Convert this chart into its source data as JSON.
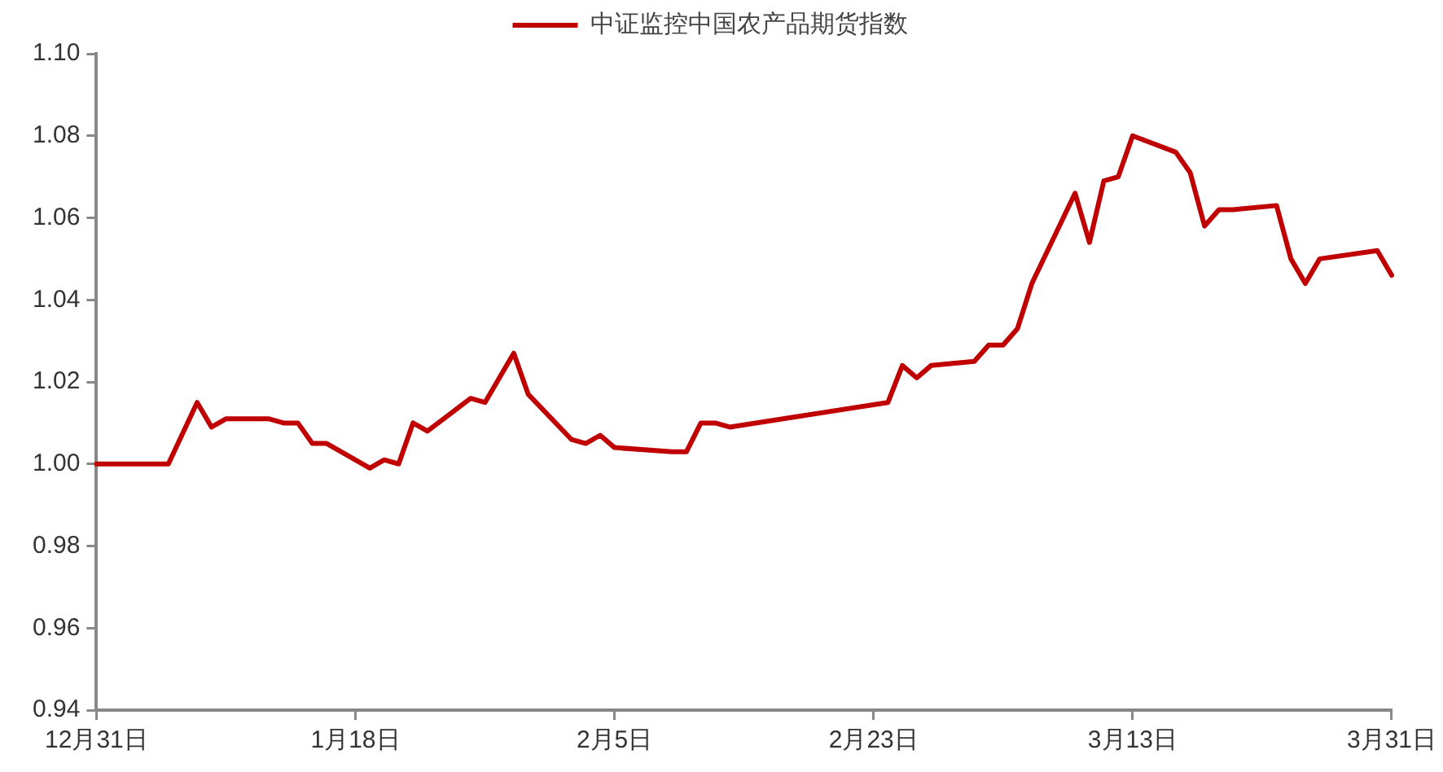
{
  "chart_data": {
    "type": "line",
    "categories": [
      "12月31日",
      null,
      null,
      null,
      null,
      null,
      null,
      null,
      null,
      null,
      null,
      null,
      null,
      null,
      null,
      null,
      null,
      null,
      "1月18日",
      null,
      null,
      null,
      null,
      null,
      null,
      null,
      null,
      null,
      null,
      null,
      null,
      null,
      null,
      null,
      null,
      null,
      "2月5日",
      null,
      null,
      null,
      null,
      null,
      null,
      null,
      null,
      null,
      null,
      null,
      null,
      null,
      null,
      null,
      null,
      null,
      "2月23日",
      null,
      null,
      null,
      null,
      null,
      null,
      null,
      null,
      null,
      null,
      null,
      null,
      null,
      null,
      null,
      null,
      null,
      "3月13日",
      null,
      null,
      null,
      null,
      null,
      null,
      null,
      null,
      null,
      null,
      null,
      null,
      null,
      null,
      null,
      null,
      null,
      "3月31日"
    ],
    "series": [
      {
        "name": "中证监控中国农产品期货指数",
        "color": "#c00000",
        "values": [
          1.0,
          null,
          null,
          null,
          null,
          1.0,
          null,
          1.015,
          1.009,
          1.011,
          null,
          null,
          1.011,
          1.01,
          1.01,
          1.005,
          1.005,
          null,
          null,
          0.999,
          1.001,
          1.0,
          1.01,
          1.008,
          null,
          null,
          1.016,
          1.015,
          null,
          1.027,
          1.017,
          null,
          null,
          1.006,
          1.005,
          1.007,
          1.004,
          null,
          null,
          null,
          1.003,
          1.003,
          1.01,
          1.01,
          1.009,
          null,
          null,
          null,
          null,
          null,
          null,
          null,
          null,
          null,
          null,
          1.015,
          1.024,
          1.021,
          1.024,
          null,
          null,
          1.025,
          1.029,
          1.029,
          1.033,
          1.044,
          null,
          null,
          1.066,
          1.054,
          1.069,
          1.07,
          1.08,
          null,
          null,
          1.076,
          1.071,
          1.058,
          1.062,
          1.062,
          null,
          null,
          1.063,
          1.05,
          1.044,
          1.05,
          null,
          null,
          null,
          1.052,
          1.046
        ]
      }
    ],
    "ylim": [
      0.94,
      1.1
    ],
    "yticks": [
      {
        "value": 0.94,
        "label": "0.94"
      },
      {
        "value": 0.96,
        "label": "0.96"
      },
      {
        "value": 0.98,
        "label": "0.98"
      },
      {
        "value": 1.0,
        "label": "1.00"
      },
      {
        "value": 1.02,
        "label": "1.02"
      },
      {
        "value": 1.04,
        "label": "1.04"
      },
      {
        "value": 1.06,
        "label": "1.06"
      },
      {
        "value": 1.08,
        "label": "1.08"
      },
      {
        "value": 1.1,
        "label": "1.10"
      }
    ],
    "grid": false,
    "legend": "top"
  }
}
